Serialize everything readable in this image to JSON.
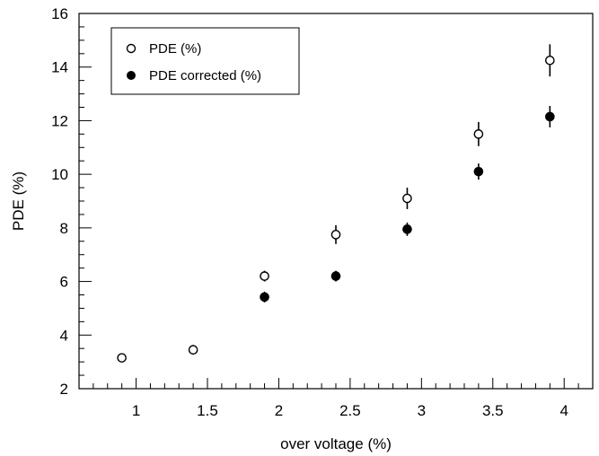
{
  "chart_data": {
    "type": "scatter",
    "title": "",
    "xlabel": "over voltage (%)",
    "ylabel": "PDE (%)",
    "xlim": [
      0.6,
      4.2
    ],
    "ylim": [
      2,
      16
    ],
    "xticks": [
      1,
      1.5,
      2,
      2.5,
      3,
      3.5,
      4
    ],
    "xtick_labels": [
      "1",
      "1.5",
      "2",
      "2.5",
      "3",
      "3.5",
      "4"
    ],
    "yticks": [
      2,
      4,
      6,
      8,
      10,
      12,
      14,
      16
    ],
    "ytick_labels": [
      "2",
      "4",
      "6",
      "8",
      "10",
      "12",
      "14",
      "16"
    ],
    "grid": false,
    "legend_position": "top-left",
    "series": [
      {
        "name": "PDE (%)",
        "marker": "open-circle",
        "x": [
          0.9,
          1.4,
          1.9,
          2.4,
          2.9,
          3.4,
          3.9
        ],
        "y": [
          3.15,
          3.45,
          6.2,
          7.75,
          9.1,
          11.5,
          14.25
        ],
        "yerr": [
          0.15,
          0.18,
          0.2,
          0.35,
          0.4,
          0.45,
          0.6
        ]
      },
      {
        "name": "PDE corrected (%)",
        "marker": "filled-circle",
        "x": [
          1.9,
          2.4,
          2.9,
          3.4,
          3.9
        ],
        "y": [
          5.42,
          6.2,
          7.95,
          10.1,
          12.15
        ],
        "yerr": [
          0.2,
          0.2,
          0.25,
          0.3,
          0.4
        ]
      }
    ]
  }
}
